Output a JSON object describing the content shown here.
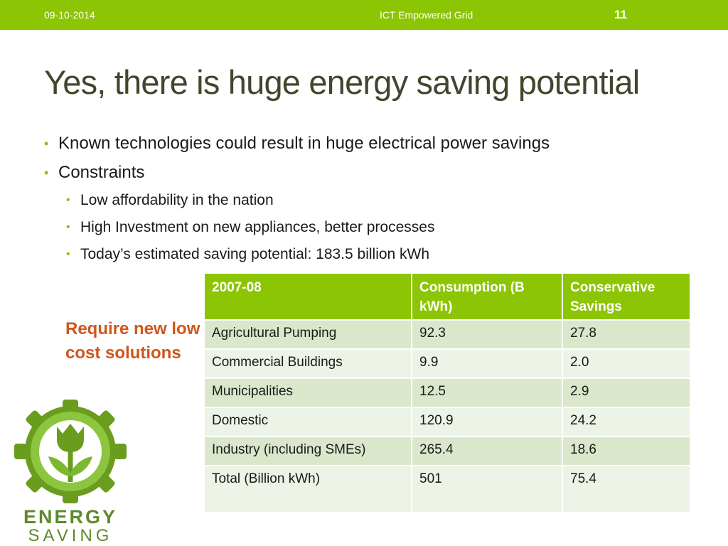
{
  "header": {
    "date": "09-10-2014",
    "footer_title": "ICT Empowered Grid",
    "slide_number": "11"
  },
  "title": "Yes, there is huge energy saving potential",
  "bullets": [
    "Known technologies could result in huge electrical power savings",
    "Constraints"
  ],
  "sub_bullets": [
    "Low affordability in the nation",
    "High Investment on new appliances, better processes",
    "Today’s estimated saving potential: 183.5 billion kWh"
  ],
  "callout": "Require new low cost solutions",
  "table": {
    "headers": [
      "2007-08",
      "Consumption (B kWh)",
      "Conservative Savings"
    ],
    "rows": [
      [
        "Agricultural Pumping",
        "92.3",
        "27.8"
      ],
      [
        "Commercial Buildings",
        "9.9",
        "2.0"
      ],
      [
        "Municipalities",
        "12.5",
        "2.9"
      ],
      [
        "Domestic",
        "120.9",
        "24.2"
      ],
      [
        "Industry (including SMEs)",
        "265.4",
        "18.6"
      ],
      [
        "Total (Billion kWh)",
        "501",
        "75.4"
      ]
    ]
  },
  "logo": {
    "word1": "ENERGY",
    "word2": "SAVING",
    "icon": "tulip-gear-icon"
  },
  "colors": {
    "accent_green": "#8cc503",
    "title_color": "#45452e",
    "callout_color": "#d0561b",
    "row_odd": "#dbe7cb",
    "row_even": "#edf3e6"
  }
}
